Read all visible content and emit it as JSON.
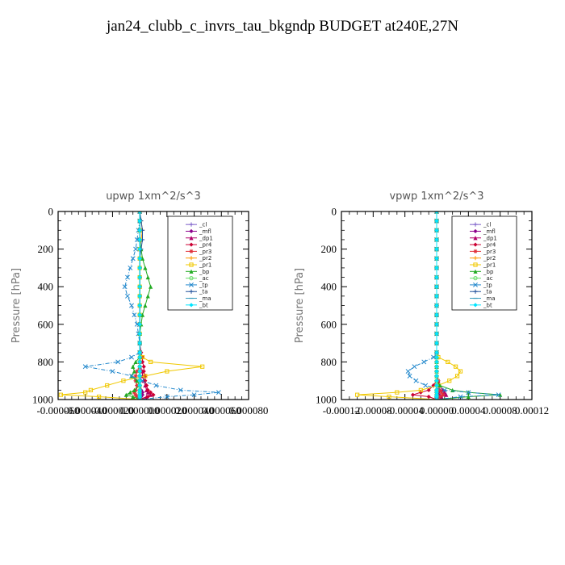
{
  "page": {
    "title": "jan24_clubb_c_invrs_tau_bkgndp  BUDGET at240E,27N"
  },
  "chart_data": [
    {
      "type": "line",
      "title": "upwp   1xm^2/s^3",
      "ylabel": "Pressure [hPa]",
      "xlabel": "",
      "xlim": [
        -6e-05,
        8e-05
      ],
      "ylim": [
        1000,
        0
      ],
      "x_tick_labels": [
        "-0.000060",
        "-0.000040",
        "-0.000020",
        "0.000000",
        "0.000020",
        "0.000040",
        "0.000060",
        "0.000080"
      ],
      "y_tick_labels": [
        "0",
        "200",
        "400",
        "600",
        "800",
        "1000"
      ],
      "legend_position": "top-right",
      "y": [
        0,
        50,
        100,
        150,
        200,
        250,
        300,
        350,
        400,
        450,
        500,
        550,
        600,
        650,
        700,
        750,
        775,
        800,
        825,
        850,
        875,
        900,
        925,
        950,
        962,
        975,
        985,
        1000
      ],
      "series": [
        {
          "name": "_cl",
          "color": "#7a5cc8",
          "marker": "plus",
          "x": [
            0,
            0,
            0,
            0,
            0,
            0,
            0,
            0,
            0,
            0,
            0,
            0,
            0,
            0,
            0,
            0,
            0,
            0,
            0,
            0,
            0,
            0,
            0,
            0,
            0,
            0,
            0,
            0
          ]
        },
        {
          "name": "_mfl",
          "color": "#8b008b",
          "marker": "diamond",
          "x": [
            0,
            0,
            0,
            0,
            0,
            0,
            0,
            0,
            0,
            0,
            0,
            0,
            0,
            0,
            0,
            0,
            0,
            0,
            0,
            0,
            0,
            0,
            0,
            1e-06,
            2e-06,
            2e-06,
            1e-06,
            0
          ]
        },
        {
          "name": "_dp1",
          "color": "#b0006a",
          "marker": "triangle",
          "x": [
            0,
            0,
            0,
            0,
            0,
            0,
            0,
            0,
            0,
            0,
            0,
            0,
            0,
            0,
            0,
            0,
            0,
            0,
            0,
            2e-06,
            2e-06,
            3e-06,
            4e-06,
            5e-06,
            6e-06,
            8e-06,
            5e-06,
            0
          ]
        },
        {
          "name": "_pr4",
          "color": "#cc0033",
          "marker": "diamond",
          "x": [
            0,
            0,
            0,
            0,
            0,
            0,
            0,
            0,
            0,
            0,
            0,
            0,
            0,
            0,
            0,
            1e-06,
            2e-06,
            2e-06,
            3e-06,
            3e-06,
            4e-06,
            4e-06,
            5e-06,
            6e-06,
            8e-06,
            1e-05,
            6e-06,
            0
          ]
        },
        {
          "name": "_pr3",
          "color": "#e0303a",
          "marker": "star",
          "x": [
            0,
            0,
            0,
            0,
            0,
            0,
            0,
            0,
            0,
            0,
            0,
            0,
            0,
            0,
            0,
            0,
            0,
            0,
            0,
            -2e-06,
            -3e-06,
            -3e-06,
            -2e-06,
            -3e-06,
            -4e-06,
            -3e-06,
            -2e-06,
            0
          ]
        },
        {
          "name": "_pr2",
          "color": "#ff9900",
          "marker": "plus",
          "x": [
            0,
            1e-06,
            2e-06,
            1e-06,
            0,
            0,
            0,
            0,
            0,
            0,
            0,
            0,
            0,
            0,
            0,
            0,
            0,
            0,
            0,
            0,
            0,
            0,
            0,
            0,
            0,
            0,
            0,
            0
          ]
        },
        {
          "name": "_pr1",
          "color": "#f0c800",
          "marker": "square",
          "x": [
            0,
            0,
            0,
            0,
            0,
            0,
            0,
            0,
            0,
            0,
            0,
            0,
            0,
            0,
            0,
            0,
            2e-06,
            8e-06,
            4.6e-05,
            2e-05,
            4e-06,
            -1.2e-05,
            -2.4e-05,
            -3.6e-05,
            -4e-05,
            -5.8e-05,
            -3e-05,
            0
          ]
        },
        {
          "name": "_bp",
          "color": "#22aa22",
          "marker": "triangle",
          "x": [
            0,
            0,
            0,
            0,
            1e-06,
            2e-06,
            4e-06,
            6e-06,
            8e-06,
            6e-06,
            4e-06,
            2e-06,
            1e-06,
            0,
            0,
            0,
            0,
            -3e-06,
            -5e-06,
            -4e-06,
            -6e-06,
            -2e-06,
            0,
            -4e-06,
            -7e-06,
            -1e-05,
            -5e-06,
            0
          ]
        },
        {
          "name": "_ac",
          "color": "#66dd66",
          "marker": "circle",
          "x": [
            0,
            0,
            0,
            0,
            0,
            0,
            0,
            0,
            0,
            0,
            0,
            0,
            0,
            0,
            0,
            0,
            0,
            0,
            0,
            0,
            0,
            0,
            0,
            0,
            0,
            0,
            0,
            0
          ]
        },
        {
          "name": "_tp",
          "color": "#2288cc",
          "marker": "cross",
          "x": [
            0,
            0,
            -1e-06,
            -2e-06,
            -3e-06,
            -5e-06,
            -7e-06,
            -9e-06,
            -1.1e-05,
            -9e-06,
            -6e-06,
            -4e-06,
            -2e-06,
            -1e-06,
            0,
            0,
            -6e-06,
            -1.6e-05,
            -4e-05,
            -2e-05,
            -6e-06,
            2e-06,
            1.2e-05,
            3e-05,
            5.8e-05,
            4e-05,
            2e-05,
            0
          ]
        },
        {
          "name": "_ta",
          "color": "#1f4e9a",
          "marker": "plus",
          "x": [
            0,
            1e-06,
            2e-06,
            2e-06,
            1e-06,
            0,
            0,
            0,
            0,
            0,
            0,
            0,
            0,
            0,
            0,
            0,
            0,
            0,
            0,
            0,
            0,
            0,
            0,
            0,
            0,
            0,
            0,
            0
          ]
        },
        {
          "name": "_ma",
          "color": "#3399bb",
          "marker": "dash",
          "x": [
            0,
            0,
            0,
            0,
            0,
            0,
            0,
            0,
            0,
            0,
            0,
            0,
            0,
            0,
            0,
            0,
            0,
            0,
            0,
            0,
            0,
            0,
            0,
            0,
            0,
            0,
            0,
            0
          ]
        },
        {
          "name": "_bt",
          "color": "#00e5ff",
          "marker": "diamond",
          "x": [
            0,
            0,
            0,
            0,
            0,
            0,
            0,
            0,
            0,
            0,
            0,
            0,
            0,
            0,
            0,
            0,
            0,
            0,
            0,
            0,
            0,
            0,
            0,
            0,
            0,
            0,
            0,
            0
          ]
        }
      ]
    },
    {
      "type": "line",
      "title": "vpwp   1xm^2/s^3",
      "ylabel": "Pressure [hPa]",
      "xlabel": "",
      "xlim": [
        -0.00012,
        0.00012
      ],
      "ylim": [
        1000,
        0
      ],
      "x_tick_labels": [
        "-0.00012",
        "-0.00008",
        "-0.00004",
        "0.00000",
        "0.00004",
        "0.00008",
        "0.00012"
      ],
      "y_tick_labels": [
        "0",
        "200",
        "400",
        "600",
        "800",
        "1000"
      ],
      "legend_position": "top-right",
      "y": [
        0,
        50,
        100,
        150,
        200,
        250,
        300,
        350,
        400,
        450,
        500,
        550,
        600,
        650,
        700,
        750,
        775,
        800,
        825,
        850,
        875,
        900,
        925,
        950,
        962,
        975,
        985,
        1000
      ],
      "series": [
        {
          "name": "_cl",
          "color": "#7a5cc8",
          "marker": "plus",
          "x": [
            0,
            0,
            0,
            0,
            0,
            0,
            0,
            0,
            0,
            0,
            0,
            0,
            0,
            0,
            0,
            0,
            0,
            0,
            0,
            0,
            0,
            0,
            0,
            0,
            0,
            0,
            0,
            0
          ]
        },
        {
          "name": "_mfl",
          "color": "#8b008b",
          "marker": "diamond",
          "x": [
            0,
            0,
            0,
            0,
            0,
            0,
            0,
            0,
            0,
            0,
            0,
            0,
            0,
            0,
            0,
            0,
            0,
            0,
            0,
            0,
            0,
            0,
            0,
            0,
            2e-06,
            3e-06,
            2e-06,
            0
          ]
        },
        {
          "name": "_dp1",
          "color": "#b0006a",
          "marker": "triangle",
          "x": [
            0,
            0,
            0,
            0,
            0,
            0,
            0,
            0,
            0,
            0,
            0,
            0,
            0,
            0,
            0,
            0,
            0,
            0,
            0,
            0,
            0,
            2e-06,
            4e-06,
            8e-06,
            1e-05,
            1.2e-05,
            6e-06,
            0
          ]
        },
        {
          "name": "_pr4",
          "color": "#cc0033",
          "marker": "diamond",
          "x": [
            0,
            0,
            0,
            0,
            0,
            0,
            0,
            0,
            0,
            0,
            0,
            0,
            0,
            0,
            0,
            0,
            0,
            0,
            0,
            0,
            0,
            0,
            -4e-06,
            -1e-05,
            -2e-05,
            -3e-05,
            -1e-05,
            0
          ]
        },
        {
          "name": "_pr3",
          "color": "#e0303a",
          "marker": "star",
          "x": [
            0,
            0,
            0,
            0,
            0,
            0,
            0,
            0,
            0,
            0,
            0,
            0,
            0,
            0,
            0,
            0,
            0,
            0,
            0,
            0,
            0,
            2e-06,
            2e-06,
            4e-06,
            6e-06,
            8e-06,
            4e-06,
            0
          ]
        },
        {
          "name": "_pr2",
          "color": "#ff9900",
          "marker": "plus",
          "x": [
            0,
            0,
            0,
            0,
            0,
            0,
            0,
            0,
            0,
            0,
            0,
            0,
            0,
            0,
            0,
            0,
            0,
            0,
            0,
            0,
            0,
            0,
            0,
            0,
            0,
            0,
            0,
            0
          ]
        },
        {
          "name": "_pr1",
          "color": "#f0c800",
          "marker": "square",
          "x": [
            0,
            0,
            0,
            0,
            0,
            0,
            0,
            0,
            0,
            0,
            0,
            0,
            0,
            0,
            0,
            0,
            2e-06,
            1.4e-05,
            2.4e-05,
            3e-05,
            2.6e-05,
            1.6e-05,
            2e-06,
            -2e-05,
            -5e-05,
            -0.0001,
            -6e-05,
            0
          ]
        },
        {
          "name": "_bp",
          "color": "#22aa22",
          "marker": "triangle",
          "x": [
            0,
            0,
            0,
            0,
            0,
            0,
            0,
            0,
            0,
            0,
            0,
            0,
            0,
            0,
            0,
            0,
            0,
            0,
            0,
            0,
            0,
            0,
            4e-06,
            2e-05,
            4e-05,
            8e-05,
            4e-05,
            0
          ]
        },
        {
          "name": "_ac",
          "color": "#66dd66",
          "marker": "circle",
          "x": [
            0,
            0,
            0,
            0,
            0,
            0,
            0,
            0,
            0,
            0,
            0,
            0,
            0,
            0,
            0,
            0,
            0,
            0,
            0,
            0,
            0,
            0,
            0,
            0,
            0,
            0,
            0,
            0
          ]
        },
        {
          "name": "_tp",
          "color": "#2288cc",
          "marker": "cross",
          "x": [
            0,
            0,
            0,
            0,
            0,
            0,
            0,
            0,
            0,
            0,
            0,
            0,
            0,
            0,
            0,
            0,
            -4e-06,
            -1.6e-05,
            -2.8e-05,
            -3.6e-05,
            -3.4e-05,
            -2.6e-05,
            -1.4e-05,
            1e-05,
            4e-05,
            7.8e-05,
            3e-05,
            0
          ]
        },
        {
          "name": "_ta",
          "color": "#1f4e9a",
          "marker": "plus",
          "x": [
            0,
            0,
            0,
            0,
            0,
            0,
            0,
            0,
            0,
            0,
            0,
            0,
            0,
            0,
            0,
            0,
            0,
            0,
            0,
            0,
            0,
            0,
            0,
            0,
            0,
            0,
            0,
            0
          ]
        },
        {
          "name": "_ma",
          "color": "#3399bb",
          "marker": "dash",
          "x": [
            0,
            0,
            0,
            0,
            0,
            0,
            0,
            0,
            0,
            0,
            0,
            0,
            0,
            0,
            0,
            0,
            0,
            0,
            0,
            0,
            0,
            0,
            0,
            0,
            0,
            0,
            0,
            0
          ]
        },
        {
          "name": "_bt",
          "color": "#00e5ff",
          "marker": "diamond",
          "x": [
            0,
            0,
            0,
            0,
            0,
            0,
            0,
            0,
            0,
            0,
            0,
            0,
            0,
            0,
            0,
            0,
            0,
            0,
            0,
            0,
            0,
            0,
            0,
            0,
            0,
            0,
            0,
            0
          ]
        }
      ]
    }
  ]
}
